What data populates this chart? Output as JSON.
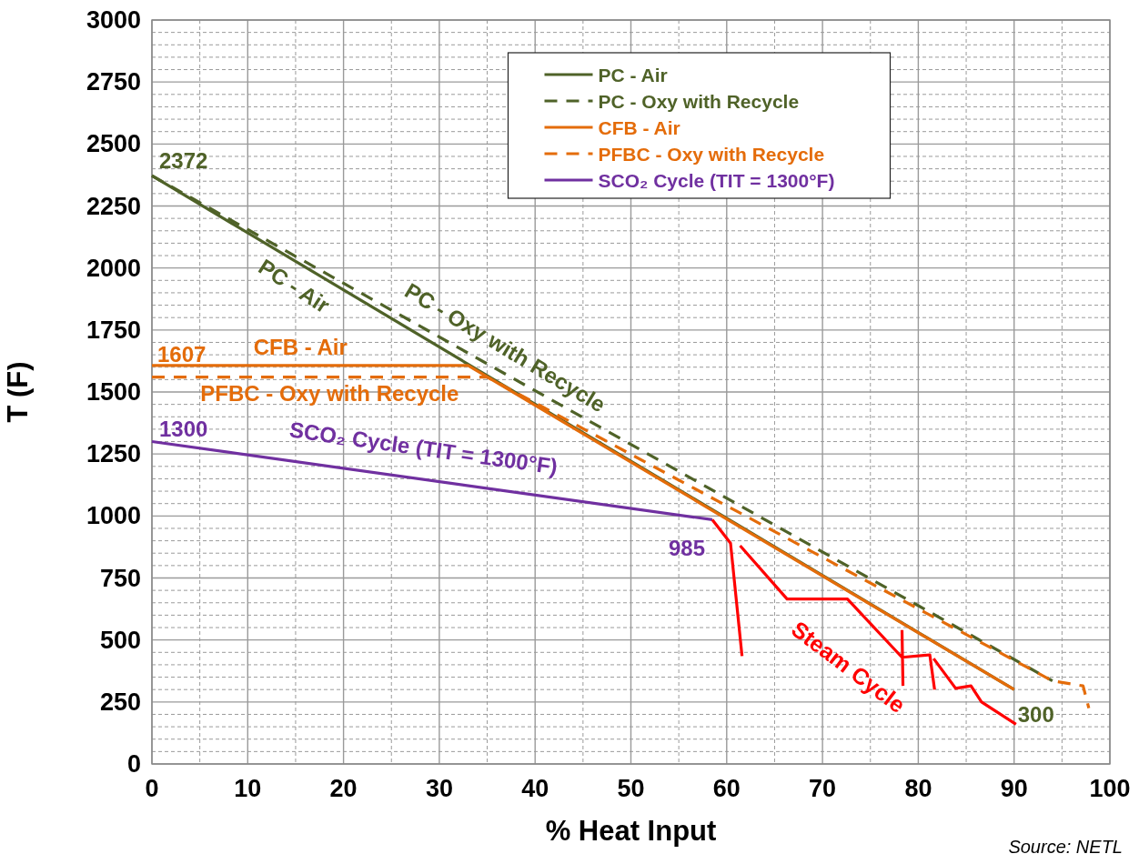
{
  "chart_data": {
    "type": "line",
    "xlabel": "% Heat Input",
    "ylabel": "T (F)",
    "xlim": [
      0,
      100
    ],
    "ylim": [
      0,
      3000
    ],
    "xticks": [
      0,
      {
        "value": 5,
        "label": null
      },
      10,
      {
        "value": 15,
        "label": null
      },
      20,
      {
        "value": 25,
        "label": null
      },
      30,
      {
        "value": 35,
        "label": null
      },
      40,
      {
        "value": 45,
        "label": null
      },
      50,
      {
        "value": 55,
        "label": null
      },
      60,
      {
        "value": 65,
        "label": null
      },
      70,
      {
        "value": 75,
        "label": null
      },
      80,
      {
        "value": 85,
        "label": null
      },
      90,
      {
        "value": 95,
        "label": null
      },
      100
    ],
    "yticks": [
      0,
      {
        "value": 50,
        "label": null
      },
      {
        "value": 100,
        "label": null
      },
      {
        "value": 150,
        "label": null
      },
      {
        "value": 200,
        "label": null
      },
      250,
      {
        "value": 300,
        "label": null
      },
      {
        "value": 350,
        "label": null
      },
      {
        "value": 400,
        "label": null
      },
      {
        "value": 450,
        "label": null
      },
      500,
      {
        "value": 550,
        "label": null
      },
      {
        "value": 600,
        "label": null
      },
      {
        "value": 650,
        "label": null
      },
      {
        "value": 700,
        "label": null
      },
      750,
      {
        "value": 800,
        "label": null
      },
      {
        "value": 850,
        "label": null
      },
      {
        "value": 900,
        "label": null
      },
      {
        "value": 950,
        "label": null
      },
      1000,
      {
        "value": 1050,
        "label": null
      },
      {
        "value": 1100,
        "label": null
      },
      {
        "value": 1150,
        "label": null
      },
      {
        "value": 1200,
        "label": null
      },
      1250,
      {
        "value": 1300,
        "label": null
      },
      {
        "value": 1350,
        "label": null
      },
      {
        "value": 1400,
        "label": null
      },
      {
        "value": 1450,
        "label": null
      },
      1500,
      {
        "value": 1550,
        "label": null
      },
      {
        "value": 1600,
        "label": null
      },
      {
        "value": 1650,
        "label": null
      },
      {
        "value": 1700,
        "label": null
      },
      1750,
      {
        "value": 1800,
        "label": null
      },
      {
        "value": 1850,
        "label": null
      },
      {
        "value": 1900,
        "label": null
      },
      {
        "value": 1950,
        "label": null
      },
      2000,
      {
        "value": 2050,
        "label": null
      },
      {
        "value": 2100,
        "label": null
      },
      {
        "value": 2150,
        "label": null
      },
      {
        "value": 2200,
        "label": null
      },
      2250,
      {
        "value": 2300,
        "label": null
      },
      {
        "value": 2350,
        "label": null
      },
      {
        "value": 2400,
        "label": null
      },
      {
        "value": 2450,
        "label": null
      },
      2500,
      {
        "value": 2550,
        "label": null
      },
      {
        "value": 2600,
        "label": null
      },
      {
        "value": 2650,
        "label": null
      },
      {
        "value": 2700,
        "label": null
      },
      2750,
      {
        "value": 2800,
        "label": null
      },
      {
        "value": 2850,
        "label": null
      },
      {
        "value": 2900,
        "label": null
      },
      {
        "value": 2950,
        "label": null
      },
      3000
    ],
    "grid": true,
    "legend": "top",
    "marker": "none",
    "series": [
      {
        "name": "PC - Air",
        "color": "#4f6228",
        "line_style": "solid",
        "x": [
          0,
          90
        ],
        "values": [
          2372,
          300
        ]
      },
      {
        "name": "PC - Oxy with Recycle",
        "color": "#4f6228",
        "line_style": "dashed",
        "x": [
          0,
          94
        ],
        "values": [
          2372,
          335
        ]
      },
      {
        "name": "CFB - Air",
        "color": "#e46c0a",
        "line_style": "solid",
        "x": [
          0,
          33,
          90
        ],
        "values": [
          1607,
          1607,
          300
        ]
      },
      {
        "name": "PFBC - Oxy with Recycle",
        "color": "#e46c0a",
        "line_style": "dashed",
        "x": [
          0,
          35,
          94,
          97.2,
          97.8
        ],
        "values": [
          1560,
          1560,
          335,
          315,
          225
        ]
      },
      {
        "name": "SCO₂ Cycle (TIT = 1300°F)",
        "color": "#7030a0",
        "line_style": "solid",
        "x": [
          0,
          58.5
        ],
        "values": [
          1300,
          985
        ]
      },
      {
        "name": "Steam Cycle",
        "color": "#ff0000",
        "line_style": "solid",
        "x": [
          58.5,
          60.4,
          61.6,
          null,
          61.4,
          66.3,
          72.6,
          78.3,
          81.2,
          81.7,
          null,
          78.3,
          78.4,
          null,
          81.6,
          83.9,
          85.5,
          86.6,
          90.2
        ],
        "values": [
          985,
          890,
          435,
          null,
          880,
          665,
          665,
          430,
          440,
          300,
          null,
          540,
          315,
          null,
          425,
          305,
          315,
          250,
          160
        ]
      }
    ],
    "annotations": [
      {
        "text": "2372",
        "x": 0,
        "y": 2372
      },
      {
        "text": "1607",
        "x": 0,
        "y": 1607
      },
      {
        "text": "1300",
        "x": 0,
        "y": 1300
      },
      {
        "text": "985",
        "x": 58.5,
        "y": 985
      },
      {
        "text": "300",
        "x": 90,
        "y": 300
      },
      "Source: NETL"
    ]
  }
}
